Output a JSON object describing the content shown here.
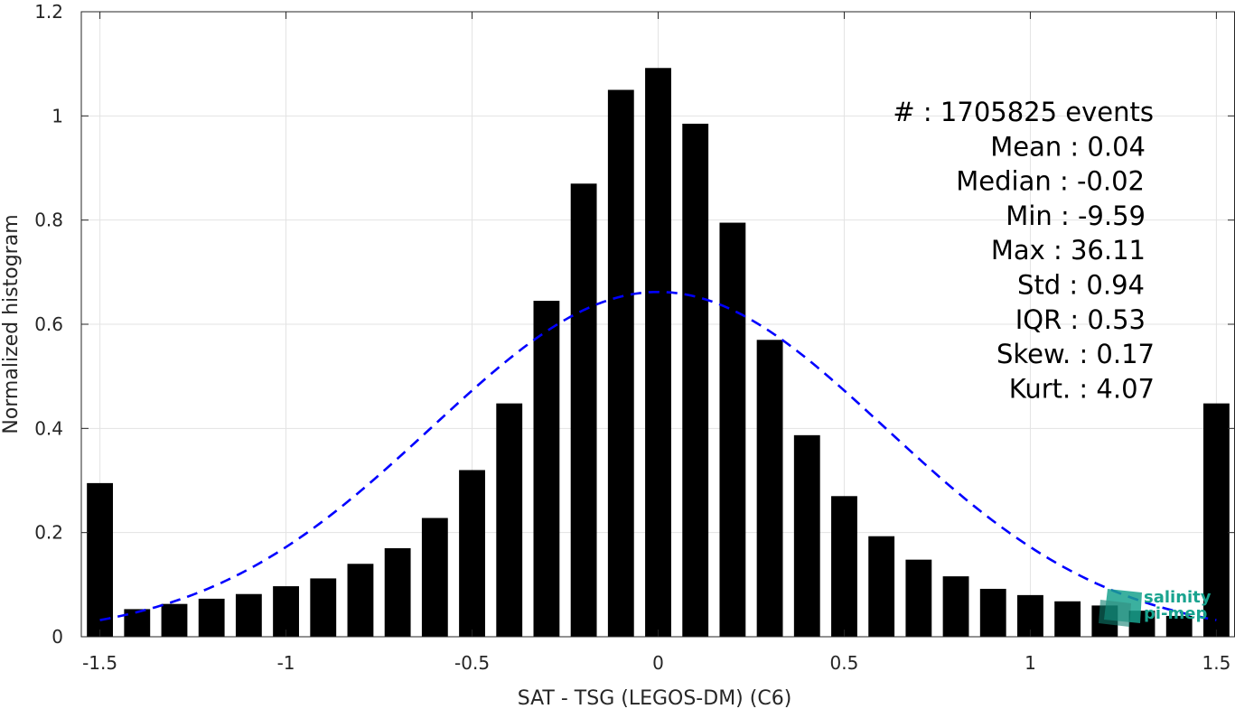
{
  "chart_data": {
    "type": "bar",
    "xlabel": "SAT - TSG (LEGOS-DM) (C6)",
    "ylabel": "Normalized histogram",
    "xlim": [
      -1.55,
      1.55
    ],
    "ylim": [
      0,
      1.2
    ],
    "xticks": [
      -1.5,
      -1,
      -0.5,
      0,
      0.5,
      1,
      1.5
    ],
    "xtick_labels": [
      "-1.5",
      "-1",
      "-0.5",
      "0",
      "0.5",
      "1",
      "1.5"
    ],
    "yticks": [
      0,
      0.2,
      0.4,
      0.6,
      0.8,
      1,
      1.2
    ],
    "ytick_labels": [
      "0",
      "0.2",
      "0.4",
      "0.6",
      "0.8",
      "1",
      "1.2"
    ],
    "grid": true,
    "bar_color": "#000000",
    "bars": {
      "x": [
        -1.5,
        -1.4,
        -1.3,
        -1.2,
        -1.1,
        -1.0,
        -0.9,
        -0.8,
        -0.7,
        -0.6,
        -0.5,
        -0.4,
        -0.3,
        -0.2,
        -0.1,
        0.0,
        0.1,
        0.2,
        0.3,
        0.4,
        0.5,
        0.6,
        0.7,
        0.8,
        0.9,
        1.0,
        1.1,
        1.2,
        1.3,
        1.4,
        1.5
      ],
      "values": [
        0.295,
        0.053,
        0.063,
        0.073,
        0.082,
        0.097,
        0.112,
        0.14,
        0.17,
        0.228,
        0.32,
        0.448,
        0.645,
        0.87,
        1.05,
        1.092,
        0.985,
        0.795,
        0.57,
        0.387,
        0.27,
        0.193,
        0.148,
        0.116,
        0.092,
        0.08,
        0.068,
        0.06,
        0.05,
        0.04,
        0.448
      ]
    },
    "fit_curve": {
      "style": "dashed",
      "color": "#0000ff",
      "peak": 0.662,
      "center": 0.0,
      "tails": [
        0.032,
        0.032
      ],
      "x_range": [
        -1.5,
        1.5
      ]
    },
    "stats_annotation": [
      "#  : 1705825 events",
      "Mean : 0.04",
      "Median : -0.02",
      "Min : -9.59",
      "Max : 36.11",
      "Std : 0.94",
      "IQR : 0.53",
      "Skew. : 0.17",
      "Kurt. : 4.07"
    ]
  },
  "logo": {
    "line1": "salinity",
    "line2": "pi-mep",
    "color": "#19a38f"
  }
}
